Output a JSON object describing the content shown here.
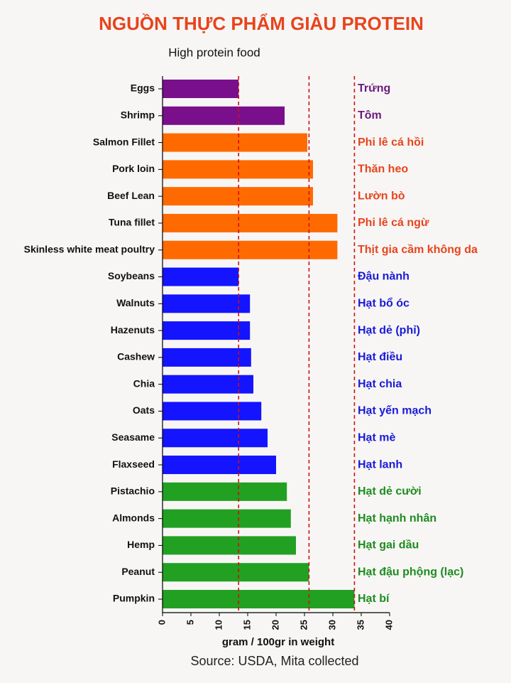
{
  "chart_data": {
    "type": "barh",
    "title": "NGUỒN THỰC PHẨM GIÀU PROTEIN",
    "subtitle": "High protein food",
    "x_label": "gram / 100gr in weight",
    "source": "Source: USDA, Mita collected",
    "categories": [
      "Eggs",
      "Shrimp",
      "Salmon Fillet",
      "Pork loin",
      "Beef Lean",
      "Tuna fillet",
      "Skinless white meat poultry",
      "Soybeans",
      "Walnuts",
      "Hazenuts",
      "Cashew",
      "Chia",
      "Oats",
      "Seasame",
      "Flaxseed",
      "Pistachio",
      "Almonds",
      "Hemp",
      "Peanut",
      "Pumpkin"
    ],
    "secondary_labels": [
      "Trứng",
      "Tôm",
      "Phi lê cá hồi",
      "Thăn heo",
      "Lườn bò",
      "Phi lê cá ngừ",
      "Thịt gia cầm không da",
      "Đậu nành",
      "Hạt bổ óc",
      "Hạt dẻ (phỉ)",
      "Hạt điều",
      "Hạt chia",
      "Hạt yến mạch",
      "Hạt mè",
      "Hạt lanh",
      "Hạt dẻ cười",
      "Hạt hạnh nhân",
      "Hạt gai dầu",
      "Hạt đậu phộng (lạc)",
      "Hạt bí"
    ],
    "values": [
      13.4,
      21.5,
      25.5,
      26.5,
      26.5,
      30.8,
      30.8,
      13.4,
      15.4,
      15.4,
      15.6,
      16,
      17.4,
      18.5,
      20,
      21.9,
      22.6,
      23.5,
      25.8,
      33.8
    ],
    "colors": [
      "#7a0f8c",
      "#7a0f8c",
      "#ff6a00",
      "#ff6a00",
      "#ff6a00",
      "#ff6a00",
      "#ff6a00",
      "#1414ff",
      "#1414ff",
      "#1414ff",
      "#1414ff",
      "#1414ff",
      "#1414ff",
      "#1414ff",
      "#1414ff",
      "#22a022",
      "#22a022",
      "#22a022",
      "#22a022",
      "#22a022"
    ],
    "label_colors": [
      "#6b1a7d",
      "#6b1a7d",
      "#e8441c",
      "#e8441c",
      "#e8441c",
      "#e8441c",
      "#e8441c",
      "#1a1ad8",
      "#1a1ad8",
      "#1a1ad8",
      "#1a1ad8",
      "#1a1ad8",
      "#1a1ad8",
      "#1a1ad8",
      "#1a1ad8",
      "#1e8c1e",
      "#1e8c1e",
      "#1e8c1e",
      "#1e8c1e",
      "#1e8c1e"
    ],
    "reference_lines": [
      13.4,
      25.8,
      33.8
    ],
    "reference_color": "#d01010",
    "xlim": [
      0,
      40
    ],
    "xticks": [
      0,
      5,
      10,
      15,
      20,
      25,
      30,
      35,
      40
    ]
  }
}
